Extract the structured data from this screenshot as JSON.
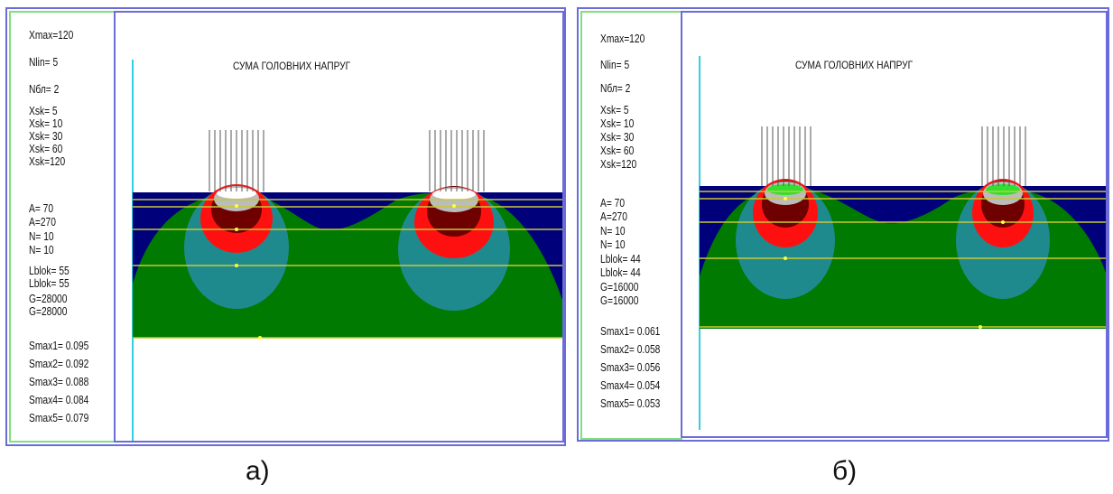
{
  "panels": [
    {
      "title": "СУМА ГОЛОВНИХ НАПРУГ",
      "caption": "а)",
      "params": [
        "Xmax=120",
        "Nlin= 5",
        "Nбл= 2",
        "Xsk= 5",
        "Xsk= 10",
        "Xsk= 30",
        "Xsk= 60",
        "Xsk=120",
        "A= 70",
        "A=270",
        "N= 10",
        "N= 10",
        "Lblok= 55",
        "Lblok= 55",
        "G=28000",
        "G=28000",
        "Smax1= 0.095",
        "Smax2= 0.092",
        "Smax3= 0.088",
        "Smax4= 0.084",
        "Smax5= 0.079"
      ]
    },
    {
      "title": "СУМА ГОЛОВНИХ НАПРУГ",
      "caption": "б)",
      "params": [
        "Xmax=120",
        "Nlin= 5",
        "Nбл= 2",
        "Xsk= 5",
        "Xsk= 10",
        "Xsk= 30",
        "Xsk= 60",
        "Xsk=120",
        "A= 70",
        "A=270",
        "N= 10",
        "N= 10",
        "Lblok= 44",
        "Lblok= 44",
        "G=16000",
        "G=16000",
        "Smax1= 0.061",
        "Smax2= 0.058",
        "Smax3= 0.056",
        "Smax4= 0.054",
        "Smax5= 0.053"
      ]
    }
  ],
  "colors": {
    "soil_layer": "#00007a",
    "stress_zone": "#007a00",
    "bulb_outer": "#1e8a8e",
    "bulb_red": "#ff1010",
    "bulb_dark": "#6e0000",
    "bulb_core": "#bcbcbc",
    "level_line": "#c8c832",
    "axis_line": "#30d0e0"
  }
}
